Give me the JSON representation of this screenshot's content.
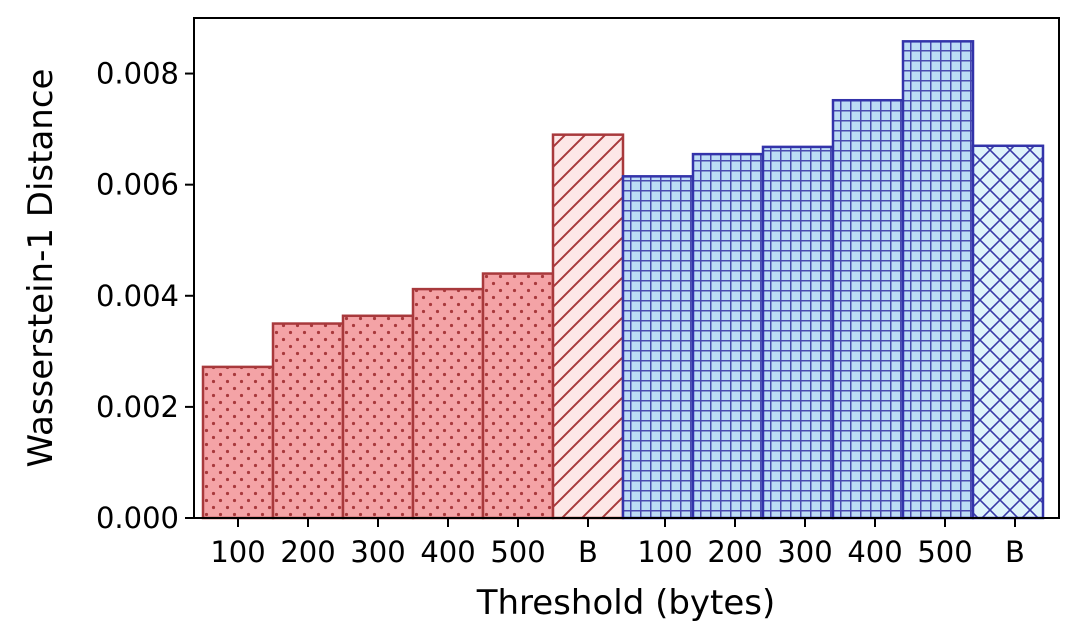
{
  "chart_data": {
    "type": "bar",
    "title": "",
    "xlabel": "Threshold (bytes)",
    "ylabel": "Wasserstein-1 Distance",
    "ylim": [
      0,
      0.009
    ],
    "yticks": [
      "0.000",
      "0.002",
      "0.004",
      "0.006",
      "0.008"
    ],
    "grid": false,
    "legend": "none",
    "groups": [
      {
        "fill": "#f4a3a6",
        "edge": "#a8393c",
        "baseline_fill": "#fde7e7",
        "bars": [
          {
            "label": "100",
            "value": 0.00272,
            "pattern": "dots"
          },
          {
            "label": "200",
            "value": 0.0035,
            "pattern": "dots"
          },
          {
            "label": "300",
            "value": 0.00364,
            "pattern": "dots"
          },
          {
            "label": "400",
            "value": 0.00412,
            "pattern": "dots"
          },
          {
            "label": "500",
            "value": 0.0044,
            "pattern": "dots"
          },
          {
            "label": "B",
            "value": 0.0069,
            "pattern": "diagonal"
          }
        ]
      },
      {
        "fill": "#bcdcf5",
        "edge": "#3333aa",
        "baseline_fill": "#dff3fb",
        "bars": [
          {
            "label": "100",
            "value": 0.00615,
            "pattern": "grid"
          },
          {
            "label": "200",
            "value": 0.00655,
            "pattern": "grid"
          },
          {
            "label": "300",
            "value": 0.00668,
            "pattern": "grid"
          },
          {
            "label": "400",
            "value": 0.00752,
            "pattern": "grid"
          },
          {
            "label": "500",
            "value": 0.00858,
            "pattern": "grid"
          },
          {
            "label": "B",
            "value": 0.0067,
            "pattern": "crosshatch"
          }
        ]
      }
    ]
  }
}
